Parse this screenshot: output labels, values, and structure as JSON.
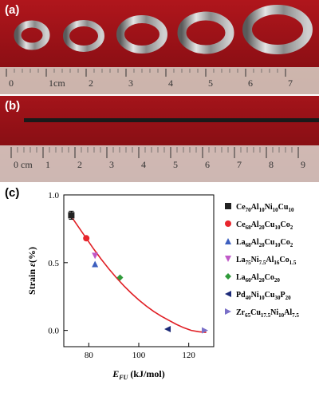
{
  "panel_labels": {
    "a": "(a)",
    "b": "(b)",
    "c": "(c)"
  },
  "ruler_a": {
    "ticks": [
      "0",
      "1cm",
      "2",
      "3",
      "4",
      "5",
      "6",
      "7"
    ]
  },
  "ruler_b": {
    "ticks": [
      "0 cm",
      "1",
      "2",
      "3",
      "4",
      "5",
      "6",
      "7",
      "8",
      "9"
    ]
  },
  "chart_data": {
    "type": "scatter",
    "xlabel": "E_FU (kJ/mol)",
    "ylabel": "Strain ε(%)",
    "xlim": [
      70,
      130
    ],
    "ylim": [
      -0.12,
      1.0
    ],
    "x_ticks": [
      80,
      100,
      120
    ],
    "y_ticks": [
      0.0,
      0.5,
      1.0
    ],
    "legend_position": "right",
    "series": [
      {
        "name": "Ce70Al10Ni10Cu10",
        "x": 73,
        "y": 0.85,
        "err": 0.03,
        "marker": "square",
        "color": "#222222"
      },
      {
        "name": "Ce68Al20Cu10Co2",
        "x": 79,
        "y": 0.68,
        "marker": "circle",
        "color": "#e8262d"
      },
      {
        "name": "La68Al20Cu10Co2",
        "x": 82.5,
        "y": 0.49,
        "marker": "triangle-up",
        "color": "#3d5fbf"
      },
      {
        "name": "La75Ni7.5Al16Co1.5",
        "x": 82.5,
        "y": 0.55,
        "marker": "triangle-down",
        "color": "#c05ac8"
      },
      {
        "name": "La60Al20Co20",
        "x": 92.5,
        "y": 0.39,
        "marker": "diamond",
        "color": "#2f9a3a"
      },
      {
        "name": "Pd40Ni10Cu30P20",
        "x": 111.5,
        "y": 0.01,
        "marker": "triangle-left",
        "color": "#1c2a78"
      },
      {
        "name": "Zr65Cu17.5Ni10Al7.5",
        "x": 126.5,
        "y": 0.0,
        "marker": "triangle-right",
        "color": "#7a70c8"
      }
    ],
    "fit_curve": {
      "color": "#e01e24",
      "x": [
        73,
        76,
        79,
        82,
        85,
        88,
        91,
        94,
        97,
        100,
        103,
        106,
        109,
        112,
        115,
        118,
        121,
        124,
        127
      ],
      "y": [
        0.84,
        0.76,
        0.68,
        0.6,
        0.525,
        0.455,
        0.39,
        0.33,
        0.275,
        0.225,
        0.18,
        0.14,
        0.105,
        0.075,
        0.045,
        0.02,
        0.0,
        -0.01,
        -0.015
      ]
    }
  },
  "legend_items": [
    {
      "base1": "Ce",
      "s1": "70",
      "base2": "Al",
      "s2": "10",
      "base3": "Ni",
      "s3": "10",
      "base4": "Cu",
      "s4": "10"
    },
    {
      "base1": "Ce",
      "s1": "68",
      "base2": "Al",
      "s2": "20",
      "base3": "Cu",
      "s3": "10",
      "base4": "Co",
      "s4": "2"
    },
    {
      "base1": "La",
      "s1": "68",
      "base2": "Al",
      "s2": "20",
      "base3": "Cu",
      "s3": "10",
      "base4": "Co",
      "s4": "2"
    },
    {
      "base1": "La",
      "s1": "75",
      "base2": "Ni",
      "s2": "7.5",
      "base3": "Al",
      "s3": "16",
      "base4": "Co",
      "s4": "1.5"
    },
    {
      "base1": "La",
      "s1": "60",
      "base2": "Al",
      "s2": "20",
      "base3": "Co",
      "s3": "20",
      "base4": "",
      "s4": ""
    },
    {
      "base1": "Pd",
      "s1": "40",
      "base2": "Ni",
      "s2": "10",
      "base3": "Cu",
      "s3": "30",
      "base4": "P",
      "s4": "20"
    },
    {
      "base1": "Zr",
      "s1": "65",
      "base2": "Cu",
      "s2": "17.5",
      "base3": "Ni",
      "s3": "10",
      "base4": "Al",
      "s4": "7.5"
    }
  ],
  "axis_titles": {
    "y_main": "Strain ",
    "y_greek": "ε",
    "y_unit": "(%)",
    "x_main": "E",
    "x_sub": "FU",
    "x_unit": " (kJ/mol)"
  }
}
